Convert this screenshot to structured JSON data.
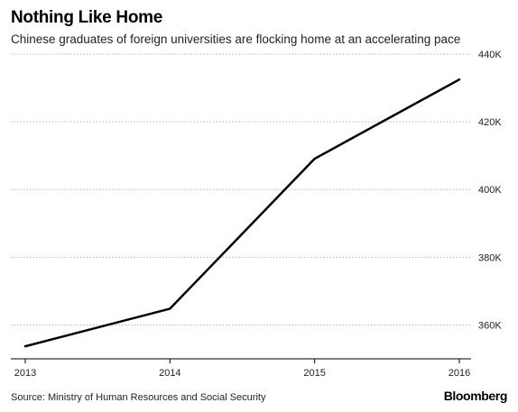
{
  "title": "Nothing Like Home",
  "subtitle": "Chinese graduates of foreign universities are flocking home at an accelerating pace",
  "source": "Source: Ministry of Human Resources and Social Security",
  "brand": "Bloomberg",
  "chart_data": {
    "type": "line",
    "x": [
      "2013",
      "2014",
      "2015",
      "2016"
    ],
    "series": [
      {
        "values": [
          353700,
          364800,
          409100,
          432500
        ],
        "color": "#000000"
      }
    ],
    "ylim": [
      350000,
      440000
    ],
    "yticks": [
      360000,
      380000,
      400000,
      420000,
      440000
    ],
    "ytick_labels": [
      "360K",
      "380K",
      "400K",
      "420K",
      "440K"
    ],
    "xtick_labels": [
      "2013",
      "2014",
      "2015",
      "2016"
    ],
    "grid": true,
    "y_axis_side": "right"
  }
}
